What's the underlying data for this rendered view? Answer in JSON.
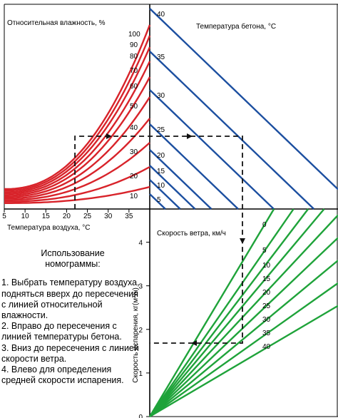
{
  "chart_data": {
    "type": "line",
    "title": "",
    "colors": {
      "humidity": "#d8232a",
      "concrete": "#1c4fa0",
      "wind": "#1fa33a",
      "guide": "#111111"
    },
    "panels": [
      {
        "id": "humidity",
        "label": "Относительная влажность, %",
        "xlabel": "Температура воздуха, °С",
        "x_ticks": [
          "5",
          "10",
          "15",
          "20",
          "25",
          "30",
          "35"
        ],
        "xlim": [
          5,
          40
        ],
        "series": [
          {
            "name": "100",
            "values": [
              100
            ]
          },
          {
            "name": "90",
            "values": [
              90
            ]
          },
          {
            "name": "80",
            "values": [
              80
            ]
          },
          {
            "name": "70",
            "values": [
              70
            ]
          },
          {
            "name": "60",
            "values": [
              60
            ]
          },
          {
            "name": "50",
            "values": [
              50
            ]
          },
          {
            "name": "40",
            "values": [
              40
            ]
          },
          {
            "name": "30",
            "values": [
              30
            ]
          },
          {
            "name": "20",
            "values": [
              20
            ]
          },
          {
            "name": "10",
            "values": [
              10
            ]
          }
        ]
      },
      {
        "id": "concrete",
        "label": "Температура бетона, °С",
        "series": [
          {
            "name": "40",
            "values": [
              40
            ]
          },
          {
            "name": "35",
            "values": [
              35
            ]
          },
          {
            "name": "30",
            "values": [
              30
            ]
          },
          {
            "name": "25",
            "values": [
              25
            ]
          },
          {
            "name": "20",
            "values": [
              20
            ]
          },
          {
            "name": "15",
            "values": [
              15
            ]
          },
          {
            "name": "10",
            "values": [
              10
            ]
          },
          {
            "name": "5",
            "values": [
              5
            ]
          }
        ]
      },
      {
        "id": "wind",
        "label": "Скорость ветра, км/ч",
        "series": [
          {
            "name": "40",
            "values": [
              40
            ]
          },
          {
            "name": "35",
            "values": [
              35
            ]
          },
          {
            "name": "30",
            "values": [
              30
            ]
          },
          {
            "name": "25",
            "values": [
              25
            ]
          },
          {
            "name": "20",
            "values": [
              20
            ]
          },
          {
            "name": "15",
            "values": [
              15
            ]
          },
          {
            "name": "10",
            "values": [
              10
            ]
          },
          {
            "name": "5",
            "values": [
              5
            ]
          },
          {
            "name": "0",
            "values": [
              0
            ]
          }
        ]
      },
      {
        "id": "evaporation",
        "ylabel": "Скорость испарения, кг(м²/ч)",
        "y_ticks": [
          "0",
          "1",
          "2",
          "3",
          "4"
        ],
        "ylim": [
          0,
          4.5
        ]
      }
    ],
    "example_path": {
      "air_temperature_c": 22,
      "relative_humidity_pct": 40,
      "concrete_temperature_c": 25,
      "wind_speed_kmh": 15,
      "evaporation_rate": 1.8
    }
  },
  "instructions": {
    "title_line1": "Использование",
    "title_line2": "номограммы:",
    "steps": [
      "1. Выбрать температуру воздуха, подняться вверх до пересечения с линией относительной влажности.",
      "2. Вправо до пересечения с линией температуры бетона.",
      "3. Вниз до пересечения с линией скорости ветра.",
      "4. Влево для определения средней скорости испарения."
    ]
  }
}
